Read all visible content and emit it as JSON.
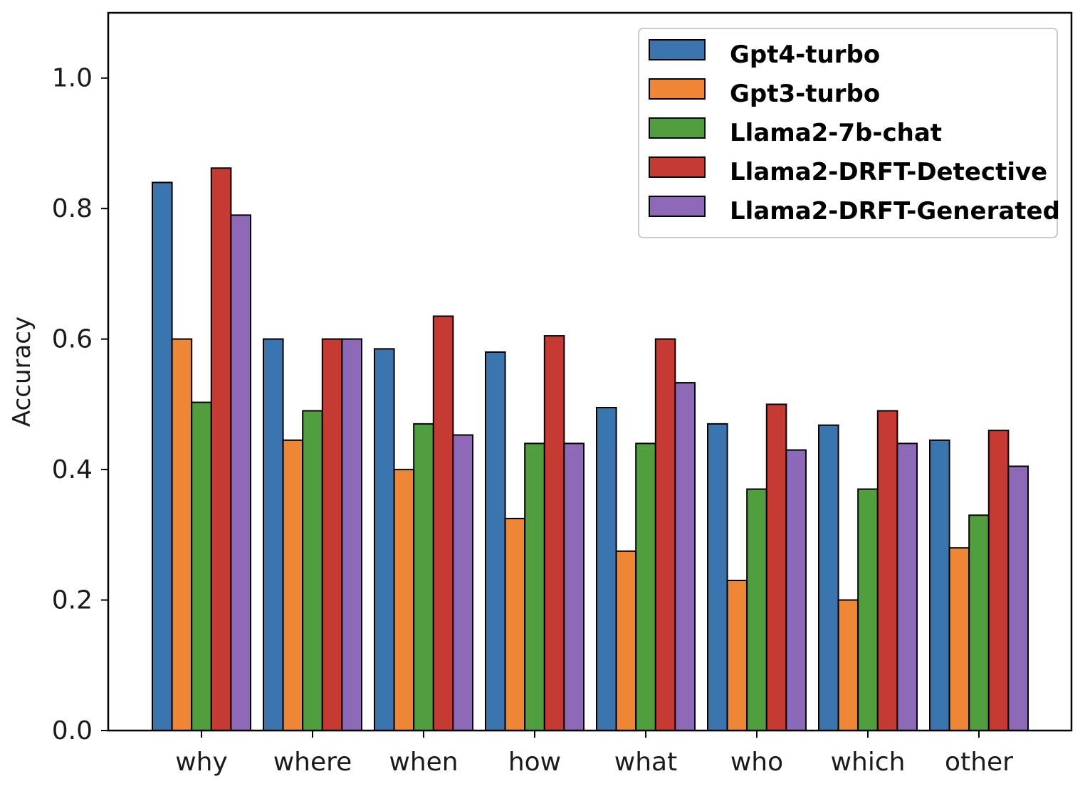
{
  "chart_data": {
    "type": "bar",
    "title": "",
    "xlabel": "",
    "ylabel": "Accuracy",
    "ylim": [
      0,
      1.1
    ],
    "yticks": [
      "0.0",
      "0.2",
      "0.4",
      "0.6",
      "0.8",
      "1.0"
    ],
    "categories": [
      "why",
      "where",
      "when",
      "how",
      "what",
      "who",
      "which",
      "other"
    ],
    "series": [
      {
        "name": "Gpt4-turbo",
        "color": "#3b75af",
        "values": [
          0.84,
          0.6,
          0.585,
          0.58,
          0.495,
          0.47,
          0.468,
          0.445
        ]
      },
      {
        "name": "Gpt3-turbo",
        "color": "#ef8636",
        "values": [
          0.6,
          0.445,
          0.4,
          0.325,
          0.275,
          0.23,
          0.2,
          0.28
        ]
      },
      {
        "name": "Llama2-7b-chat",
        "color": "#519e3e",
        "values": [
          0.503,
          0.49,
          0.47,
          0.44,
          0.44,
          0.37,
          0.37,
          0.33
        ]
      },
      {
        "name": "Llama2-DRFT-Detective",
        "color": "#c53a32",
        "values": [
          0.862,
          0.6,
          0.635,
          0.605,
          0.6,
          0.5,
          0.49,
          0.46
        ]
      },
      {
        "name": "Llama2-DRFT-Generated",
        "color": "#8d69b8",
        "values": [
          0.79,
          0.6,
          0.453,
          0.44,
          0.533,
          0.43,
          0.44,
          0.405
        ]
      }
    ],
    "legend_position": "top-right",
    "grid": false
  }
}
